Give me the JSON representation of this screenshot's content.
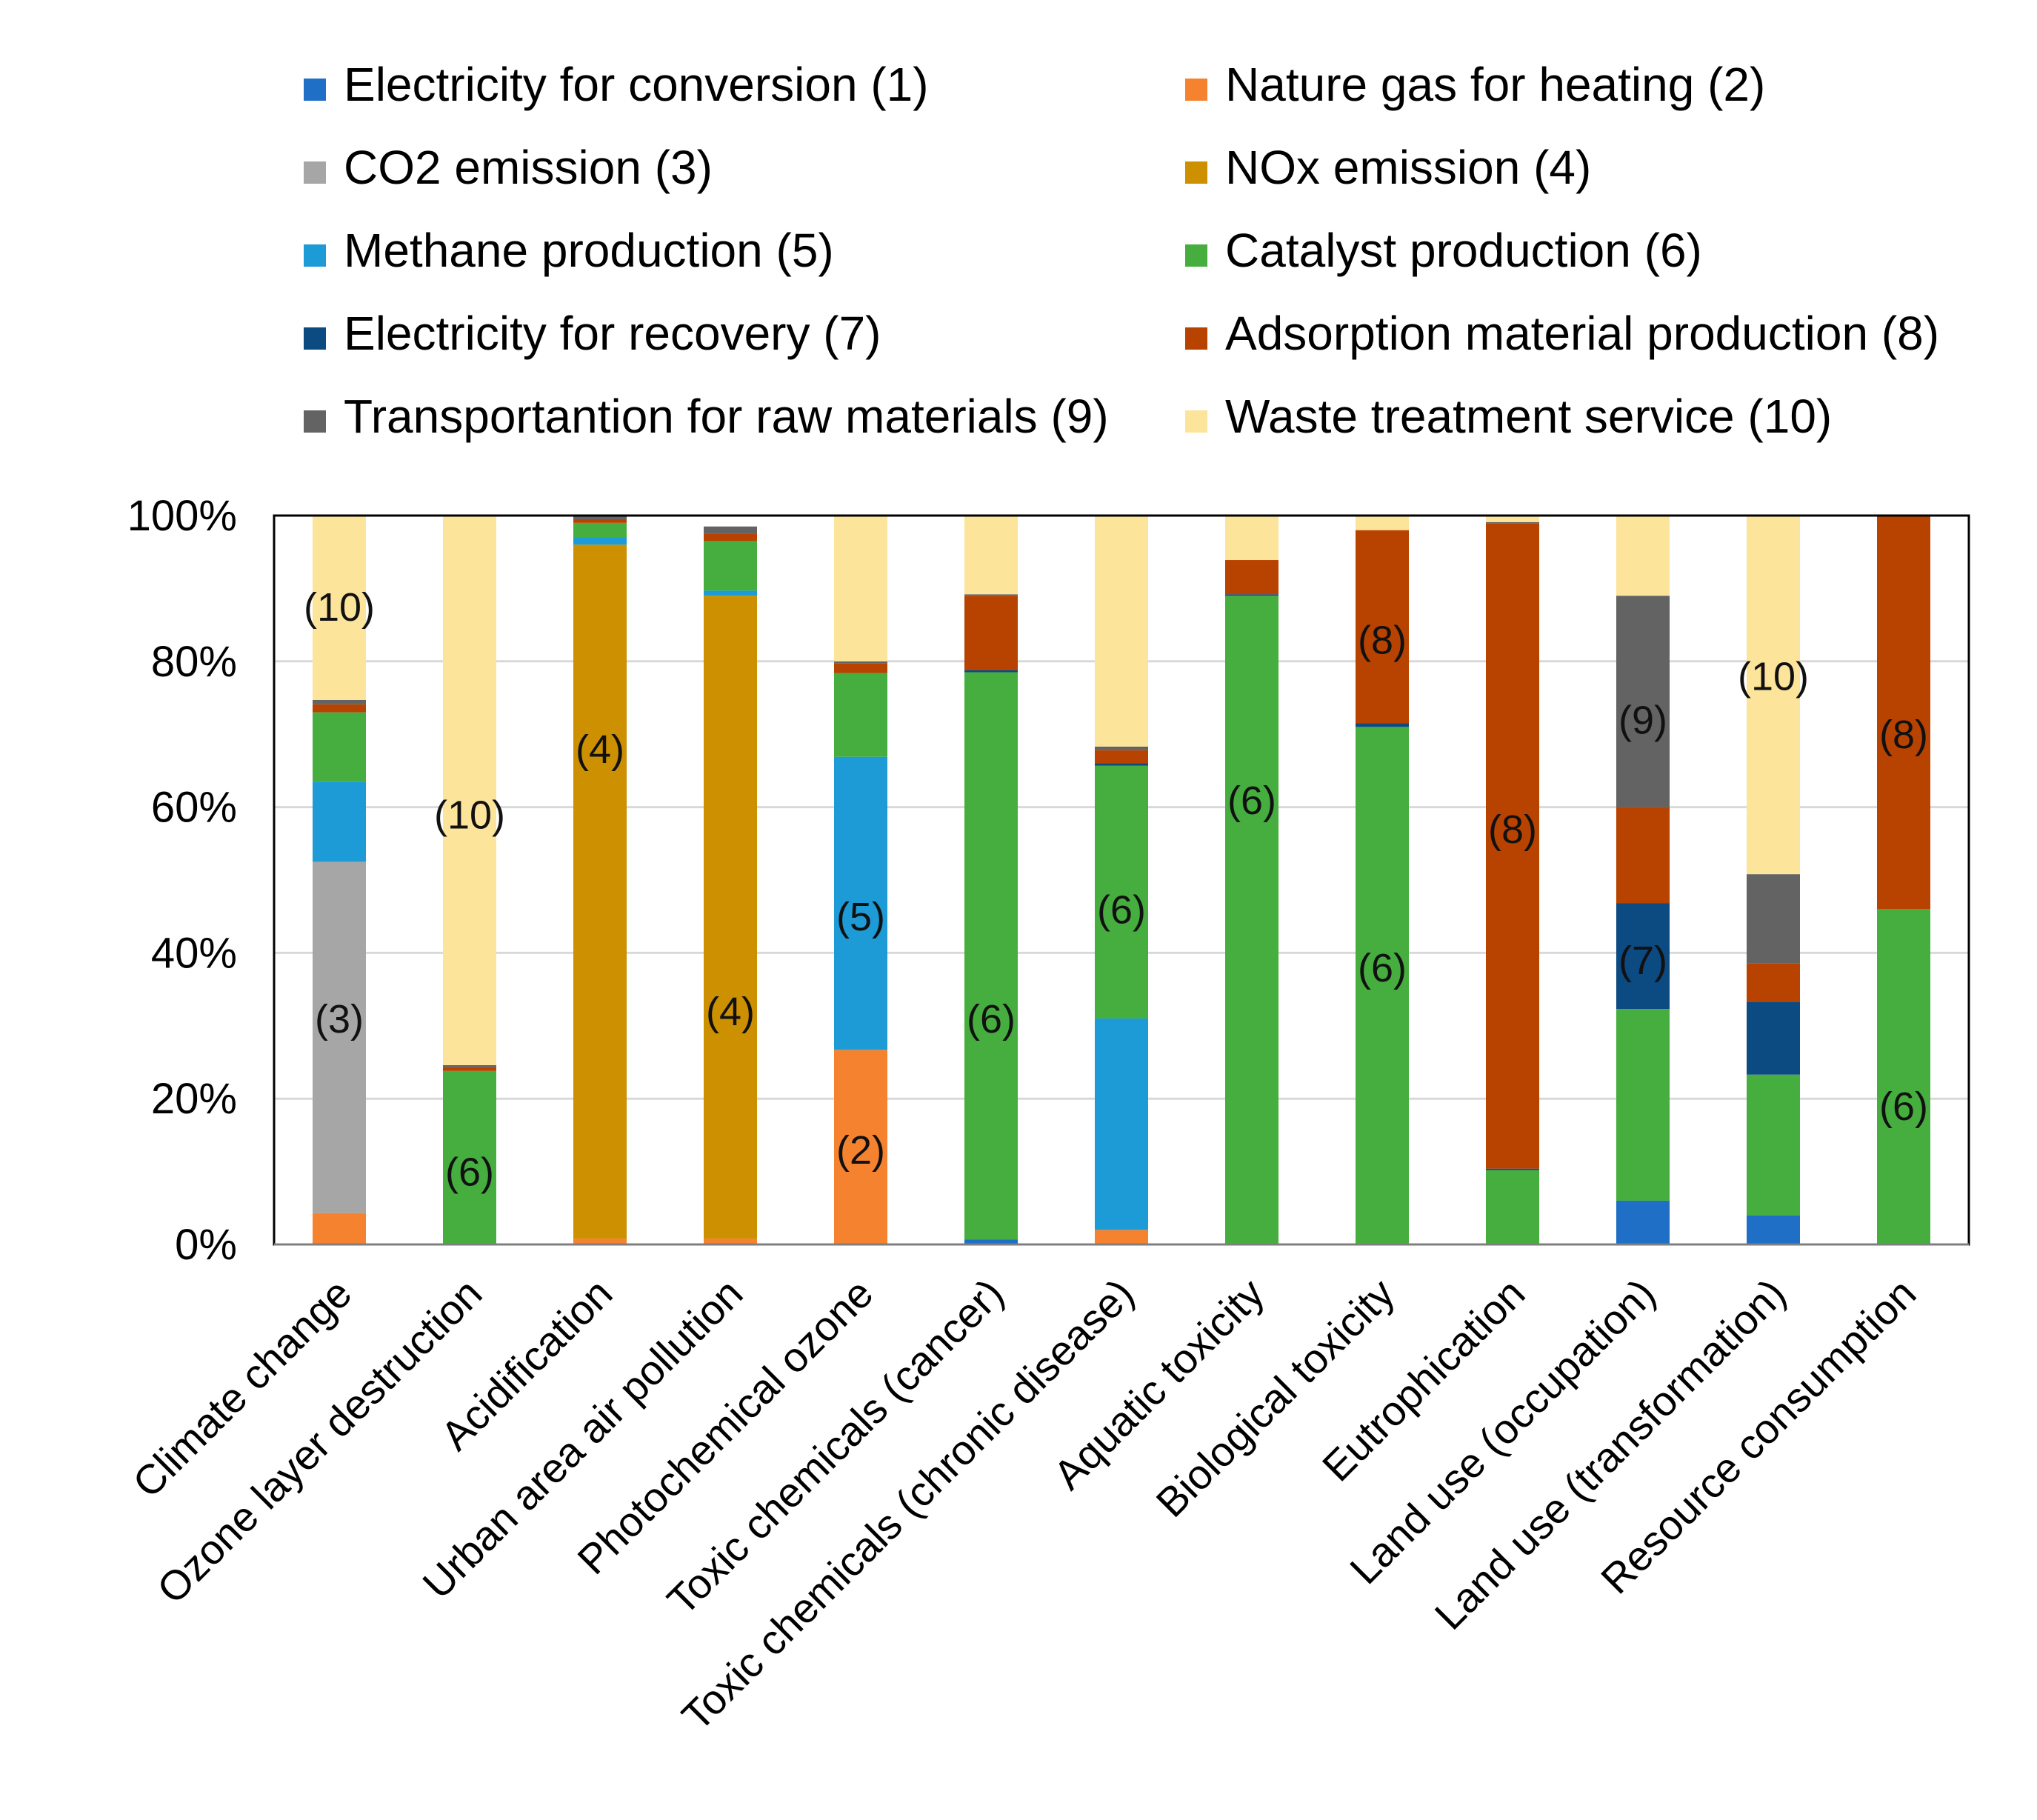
{
  "chart_data": {
    "type": "bar",
    "stacked": true,
    "title": "",
    "xlabel": "",
    "ylabel": "",
    "ylim": [
      0,
      100
    ],
    "yticks": [
      "0%",
      "20%",
      "40%",
      "60%",
      "80%",
      "100%"
    ],
    "grid": true,
    "legend_position": "top",
    "categories": [
      "Climate change",
      "Ozone layer destruction",
      "Acidification",
      "Urban area air pollution",
      "Photochemical ozone",
      "Toxic chemicals (cancer)",
      "Toxic chemicals (chronic disease)",
      "Aquatic toxicity",
      "Biological toxicity",
      "Eutrophication",
      "Land use (occupation)",
      "Land use (transformation)",
      "Resource  consumption"
    ],
    "series": [
      {
        "name": "Electricity for conversion (1)",
        "color": "#1f6fc6",
        "values": [
          0,
          0,
          0,
          0,
          0,
          0.7,
          0,
          0,
          0,
          0,
          6,
          4,
          0
        ]
      },
      {
        "name": "Nature gas for heating (2)",
        "color": "#f5822f",
        "values": [
          4.3,
          0,
          0.8,
          0.8,
          26.7,
          0,
          2,
          0,
          0,
          0,
          0,
          0,
          0
        ]
      },
      {
        "name": "CO2 emission (3)",
        "color": "#a6a6a6",
        "values": [
          48.2,
          0,
          0,
          0,
          0,
          0,
          0,
          0,
          0,
          0,
          0,
          0,
          0
        ]
      },
      {
        "name": "NOx emission (4)",
        "color": "#cc9000",
        "values": [
          0,
          0,
          95.2,
          88.2,
          0,
          0,
          0,
          0,
          0,
          0,
          0,
          0,
          0
        ]
      },
      {
        "name": "Methane production (5)",
        "color": "#1c9bd6",
        "values": [
          11,
          0,
          1,
          0.7,
          40.2,
          0,
          29,
          0,
          0,
          0,
          0,
          0,
          0
        ]
      },
      {
        "name": "Catalyst production (6)",
        "color": "#46ae3f",
        "values": [
          9.5,
          23.8,
          2,
          6.8,
          11.5,
          77.8,
          34.7,
          89,
          71,
          10.2,
          26.3,
          19.3,
          46
        ]
      },
      {
        "name": "Electricity for recovery (7)",
        "color": "#0c4a82",
        "values": [
          0,
          0,
          0,
          0,
          0,
          0.3,
          0.3,
          0.2,
          0.5,
          0.2,
          14.5,
          10,
          0
        ]
      },
      {
        "name": "Adsorption material production (8)",
        "color": "#b84300",
        "values": [
          1.1,
          0.5,
          0.5,
          1,
          1.3,
          10.2,
          1.8,
          4.7,
          26.5,
          88.5,
          13.2,
          5.3,
          54
        ]
      },
      {
        "name": "Transportantion for raw materials (9)",
        "color": "#636363",
        "values": [
          0.6,
          0.3,
          0.5,
          1,
          0.3,
          0.2,
          0.5,
          0,
          0,
          0.2,
          29,
          12.2,
          0
        ]
      },
      {
        "name": "Waste treatment service (10)",
        "color": "#fde49b",
        "values": [
          25.3,
          75.4,
          0,
          0,
          20,
          10.8,
          31.7,
          6.1,
          2,
          0.9,
          11,
          49.2,
          0
        ]
      }
    ],
    "annotations": [
      {
        "category": "Climate change",
        "label": "(10)",
        "y": 87.5
      },
      {
        "category": "Climate change",
        "label": "(3)",
        "y": 31
      },
      {
        "category": "Ozone layer destruction",
        "label": "(10)",
        "y": 59
      },
      {
        "category": "Ozone layer destruction",
        "label": "(6)",
        "y": 10
      },
      {
        "category": "Acidification",
        "label": "(4)",
        "y": 68
      },
      {
        "category": "Urban area air pollution",
        "label": "(4)",
        "y": 32
      },
      {
        "category": "Photochemical ozone",
        "label": "(5)",
        "y": 45
      },
      {
        "category": "Photochemical ozone",
        "label": "(2)",
        "y": 13
      },
      {
        "category": "Toxic chemicals (cancer)",
        "label": "(6)",
        "y": 31
      },
      {
        "category": "Toxic chemicals (chronic disease)",
        "label": "(6)",
        "y": 46
      },
      {
        "category": "Aquatic toxicity",
        "label": "(6)",
        "y": 61
      },
      {
        "category": "Biological toxicity",
        "label": "(8)",
        "y": 83
      },
      {
        "category": "Biological toxicity",
        "label": "(6)",
        "y": 38
      },
      {
        "category": "Eutrophication",
        "label": "(8)",
        "y": 57
      },
      {
        "category": "Land use (occupation)",
        "label": "(9)",
        "y": 72
      },
      {
        "category": "Land use (occupation)",
        "label": "(7)",
        "y": 39
      },
      {
        "category": "Land use (transformation)",
        "label": "(10)",
        "y": 78
      },
      {
        "category": "Resource  consumption",
        "label": "(8)",
        "y": 70
      },
      {
        "category": "Resource  consumption",
        "label": "(6)",
        "y": 19
      }
    ]
  }
}
